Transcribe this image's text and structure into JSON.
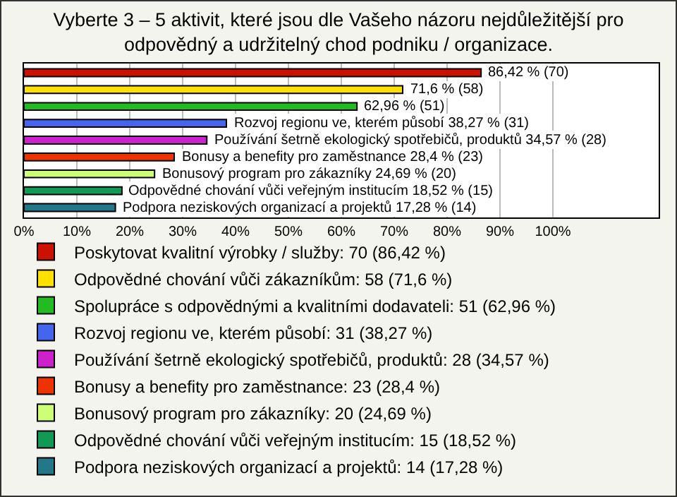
{
  "chart_data": {
    "type": "bar",
    "orientation": "horizontal",
    "title": "Vyberte 3 – 5 aktivit, které jsou dle Vašeho názoru nejdůležitější pro\nodpovědný a udržitelný chod podniku / organizace.",
    "categories": [
      null,
      null,
      null,
      null,
      null,
      null,
      null,
      null,
      null
    ],
    "series": [
      {
        "name": "Poskytovat kvalitní výrobky / služby: 70 (86,42 %)",
        "color": "#cc1100",
        "values": [
          86.42,
          null,
          null,
          null,
          null,
          null,
          null,
          null,
          null
        ],
        "value_labels": [
          "86,42 % (70)",
          null,
          null,
          null,
          null,
          null,
          null,
          null,
          null
        ]
      },
      {
        "name": "Odpovědné chování vůči zákazníkům: 58 (71,6 %)",
        "color": "#ffe000",
        "values": [
          null,
          71.6,
          null,
          null,
          null,
          null,
          null,
          null,
          null
        ],
        "value_labels": [
          null,
          "71,6 % (58)",
          null,
          null,
          null,
          null,
          null,
          null,
          null
        ]
      },
      {
        "name": "Spolupráce s odpovědnými a kvalitními dodavateli: 51 (62,96 %)",
        "color": "#22bb22",
        "values": [
          null,
          null,
          62.96,
          null,
          null,
          null,
          null,
          null,
          null
        ],
        "value_labels": [
          null,
          null,
          "62,96 % (51)",
          null,
          null,
          null,
          null,
          null,
          null
        ]
      },
      {
        "name": "Rozvoj regionu ve, kterém působí: 31 (38,27 %)",
        "color": "#4466ee",
        "values": [
          null,
          null,
          null,
          38.27,
          null,
          null,
          null,
          null,
          null
        ],
        "value_labels": [
          null,
          null,
          null,
          "Rozvoj regionu ve, kterém působí 38,27 % (31)",
          null,
          null,
          null,
          null,
          null
        ]
      },
      {
        "name": "Používání šetrně ekologický spotřebičů, produktů: 28 (34,57 %)",
        "color": "#cc22cc",
        "values": [
          null,
          null,
          null,
          null,
          34.57,
          null,
          null,
          null,
          null
        ],
        "value_labels": [
          null,
          null,
          null,
          null,
          "Používání šetrně ekologický spotřebičů, produktů 34,57 % (28)",
          null,
          null,
          null,
          null
        ]
      },
      {
        "name": "Bonusy a benefity pro zaměstnance: 23 (28,4 %)",
        "color": "#ee3300",
        "values": [
          null,
          null,
          null,
          null,
          null,
          28.4,
          null,
          null,
          null
        ],
        "value_labels": [
          null,
          null,
          null,
          null,
          null,
          "Bonusy a benefity pro zaměstnance 28,4 % (23)",
          null,
          null,
          null
        ]
      },
      {
        "name": "Bonusový program pro zákazníky: 20 (24,69 %)",
        "color": "#ccff77",
        "values": [
          null,
          null,
          null,
          null,
          null,
          null,
          24.69,
          null,
          null
        ],
        "value_labels": [
          null,
          null,
          null,
          null,
          null,
          null,
          "Bonusový program pro zákazníky 24,69 % (20)",
          null,
          null
        ]
      },
      {
        "name": "Odpovědné chování vůči veřejným institucím: 15 (18,52 %)",
        "color": "#119955",
        "values": [
          null,
          null,
          null,
          null,
          null,
          null,
          null,
          18.52,
          null
        ],
        "value_labels": [
          null,
          null,
          null,
          null,
          null,
          null,
          null,
          "Odpovědné chování vůči veřejným institucím 18,52 % (15)",
          null
        ]
      },
      {
        "name": "Podpora neziskových organizací a projektů: 14 (17,28 %)",
        "color": "#227788",
        "values": [
          null,
          null,
          null,
          null,
          null,
          null,
          null,
          null,
          17.28
        ],
        "value_labels": [
          null,
          null,
          null,
          null,
          null,
          null,
          null,
          null,
          "Podpora neziskových organizací a projektů 17,28 % (14)"
        ]
      }
    ],
    "xlim": [
      0,
      120
    ],
    "xticks": [
      {
        "value": 0,
        "label": "0%"
      },
      {
        "value": 10,
        "label": "10%"
      },
      {
        "value": 20,
        "label": "20%"
      },
      {
        "value": 30,
        "label": "30%"
      },
      {
        "value": 40,
        "label": "40%"
      },
      {
        "value": 50,
        "label": "50%"
      },
      {
        "value": 60,
        "label": "60%"
      },
      {
        "value": 70,
        "label": "70%"
      },
      {
        "value": 80,
        "label": "80%"
      },
      {
        "value": 90,
        "label": "90%"
      },
      {
        "value": 100,
        "label": "100%"
      }
    ],
    "grid": "x",
    "legend": "bottom",
    "tick_labels": "x"
  }
}
